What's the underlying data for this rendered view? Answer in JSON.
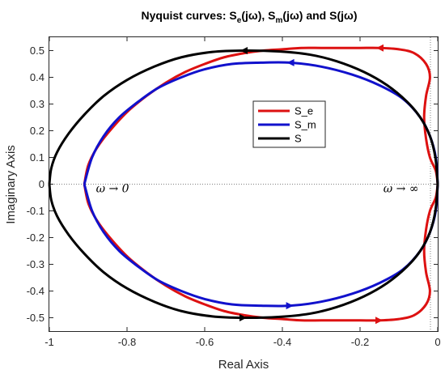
{
  "chart_data": {
    "type": "line",
    "title": {
      "prefix": "Nyquist curves: S",
      "e_sub": "e",
      "mid1": "(jω), S",
      "m_sub": "m",
      "mid2": "(jω) and S(jω)"
    },
    "xlabel": "Real Axis",
    "ylabel": "Imaginary Axis",
    "xlim": [
      -1,
      0
    ],
    "ylim": [
      -0.55,
      0.55
    ],
    "xticks": [
      -1,
      -0.8,
      -0.6,
      -0.4,
      -0.2,
      0
    ],
    "xtick_labels": [
      "-1",
      "-0.8",
      "-0.6",
      "-0.4",
      "-0.2",
      "0"
    ],
    "yticks": [
      -0.5,
      -0.4,
      -0.3,
      -0.2,
      -0.1,
      0,
      0.1,
      0.2,
      0.3,
      0.4,
      0.5
    ],
    "ytick_labels": [
      "-0.5",
      "-0.4",
      "-0.3",
      "-0.2",
      "-0.1",
      "0",
      "0.1",
      "0.2",
      "0.3",
      "0.4",
      "0.5"
    ],
    "grid": false,
    "zero_line": "dotted",
    "legend_placement": "upper-center",
    "series": [
      {
        "name": "S_e",
        "color": "#dd1111",
        "x": [
          0,
          -0.005,
          -0.02,
          -0.03,
          -0.035,
          -0.03,
          -0.02,
          -0.03,
          -0.06,
          -0.1,
          -0.15,
          -0.2,
          -0.25,
          -0.3,
          -0.35,
          -0.4,
          -0.45,
          -0.5,
          -0.55,
          -0.6,
          -0.65,
          -0.7,
          -0.75,
          -0.8,
          -0.85,
          -0.88,
          -0.9,
          -0.91
        ],
        "y": [
          0,
          0.05,
          0.1,
          0.17,
          0.25,
          0.33,
          0.4,
          0.45,
          0.49,
          0.505,
          0.51,
          0.51,
          0.51,
          0.51,
          0.51,
          0.505,
          0.5,
          0.49,
          0.475,
          0.45,
          0.42,
          0.38,
          0.33,
          0.27,
          0.19,
          0.13,
          0.07,
          0
        ]
      },
      {
        "name": "S_m",
        "color": "#1111cc",
        "x": [
          0,
          -0.005,
          -0.02,
          -0.045,
          -0.09,
          -0.15,
          -0.22,
          -0.3,
          -0.38,
          -0.455,
          -0.53,
          -0.6,
          -0.66,
          -0.72,
          -0.77,
          -0.82,
          -0.86,
          -0.89,
          -0.91
        ],
        "y": [
          0,
          0.1,
          0.18,
          0.25,
          0.32,
          0.37,
          0.41,
          0.44,
          0.455,
          0.455,
          0.45,
          0.43,
          0.4,
          0.36,
          0.31,
          0.25,
          0.18,
          0.1,
          0
        ]
      },
      {
        "name": "S",
        "color": "#000000",
        "x": [
          0,
          -0.006,
          -0.02,
          -0.045,
          -0.08,
          -0.13,
          -0.19,
          -0.26,
          -0.33,
          -0.41,
          -0.5,
          -0.58,
          -0.66,
          -0.73,
          -0.8,
          -0.86,
          -0.91,
          -0.95,
          -0.98,
          -0.995,
          -1
        ],
        "y": [
          0,
          0.1,
          0.18,
          0.25,
          0.31,
          0.37,
          0.42,
          0.46,
          0.485,
          0.497,
          0.5,
          0.495,
          0.475,
          0.44,
          0.39,
          0.33,
          0.26,
          0.19,
          0.12,
          0.06,
          0
        ]
      }
    ],
    "annotations": [
      {
        "text": "ω → 0",
        "x": -0.88,
        "y": -0.015
      },
      {
        "text": "ω → ∞",
        "x": -0.14,
        "y": -0.015
      }
    ]
  }
}
